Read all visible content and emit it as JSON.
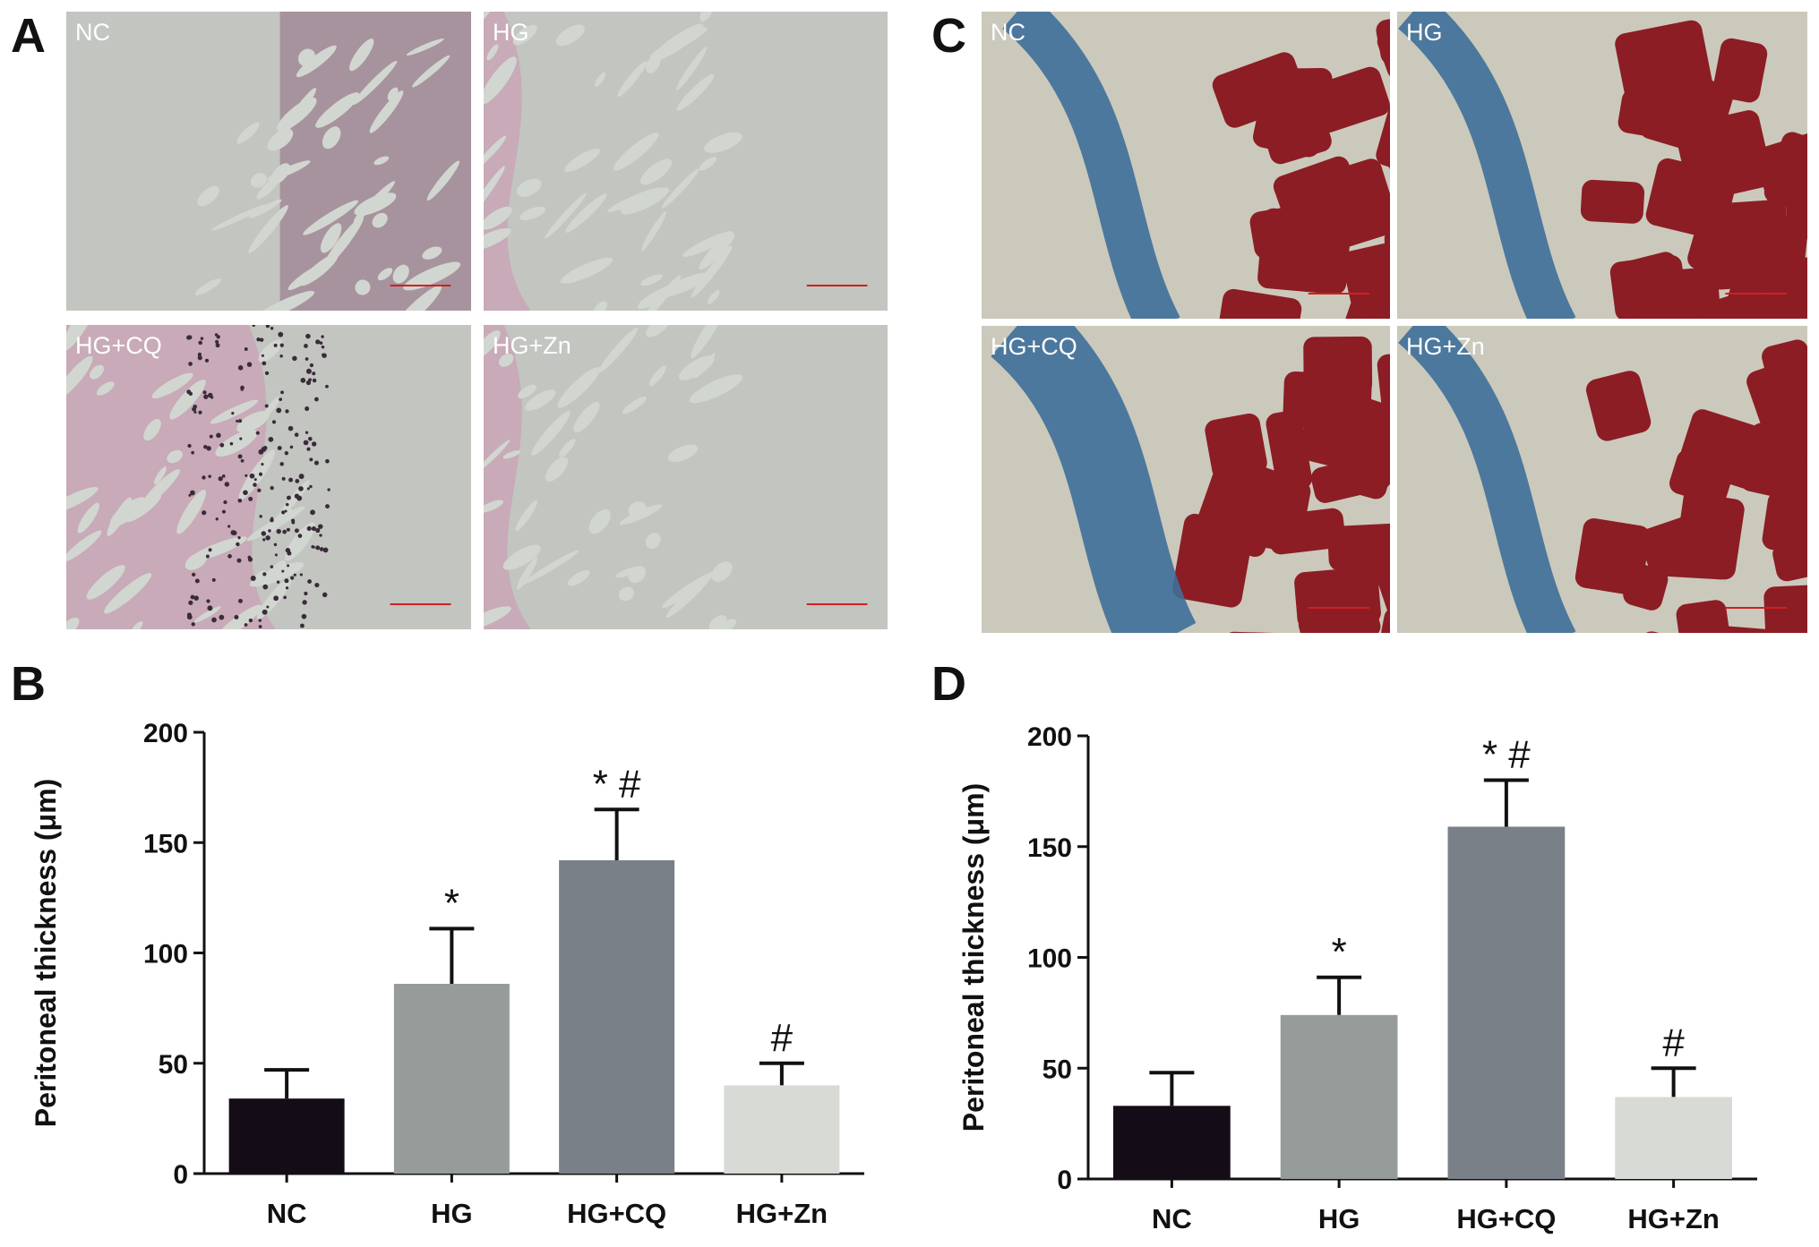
{
  "panels": [
    {
      "letter": "A",
      "stain": "he",
      "images": [
        {
          "label": "NC"
        },
        {
          "label": "HG"
        },
        {
          "label": "HG+CQ"
        },
        {
          "label": "HG+Zn"
        }
      ]
    },
    {
      "letter": "C",
      "stain": "masson",
      "images": [
        {
          "label": "NC"
        },
        {
          "label": "HG"
        },
        {
          "label": "HG+CQ"
        },
        {
          "label": "HG+Zn"
        }
      ]
    }
  ],
  "chart_data": [
    {
      "type": "bar",
      "panel": "B",
      "ylabel": "Peritoneal thickness (μm)",
      "categories": [
        "NC",
        "HG",
        "HG+CQ",
        "HG+Zn"
      ],
      "values": [
        34,
        86,
        142,
        40
      ],
      "errors": [
        13,
        25,
        23,
        10
      ],
      "colors": [
        "#140c16",
        "#969c99",
        "#7a8088",
        "#d8dbd5"
      ],
      "annotations": [
        null,
        "*",
        "* #",
        "#"
      ],
      "ylim": [
        0,
        200
      ],
      "yticks": [
        0,
        50,
        100,
        150,
        200
      ]
    },
    {
      "type": "bar",
      "panel": "D",
      "ylabel": "Peritoneal thickness (μm)",
      "categories": [
        "NC",
        "HG",
        "HG+CQ",
        "HG+Zn"
      ],
      "values": [
        33,
        74,
        159,
        37
      ],
      "errors": [
        15,
        17,
        21,
        13
      ],
      "colors": [
        "#140c16",
        "#969c99",
        "#7a8088",
        "#d8dbd5"
      ],
      "annotations": [
        null,
        "*",
        "* #",
        "#"
      ],
      "ylim": [
        0,
        200
      ],
      "yticks": [
        0,
        50,
        100,
        150,
        200
      ]
    }
  ]
}
